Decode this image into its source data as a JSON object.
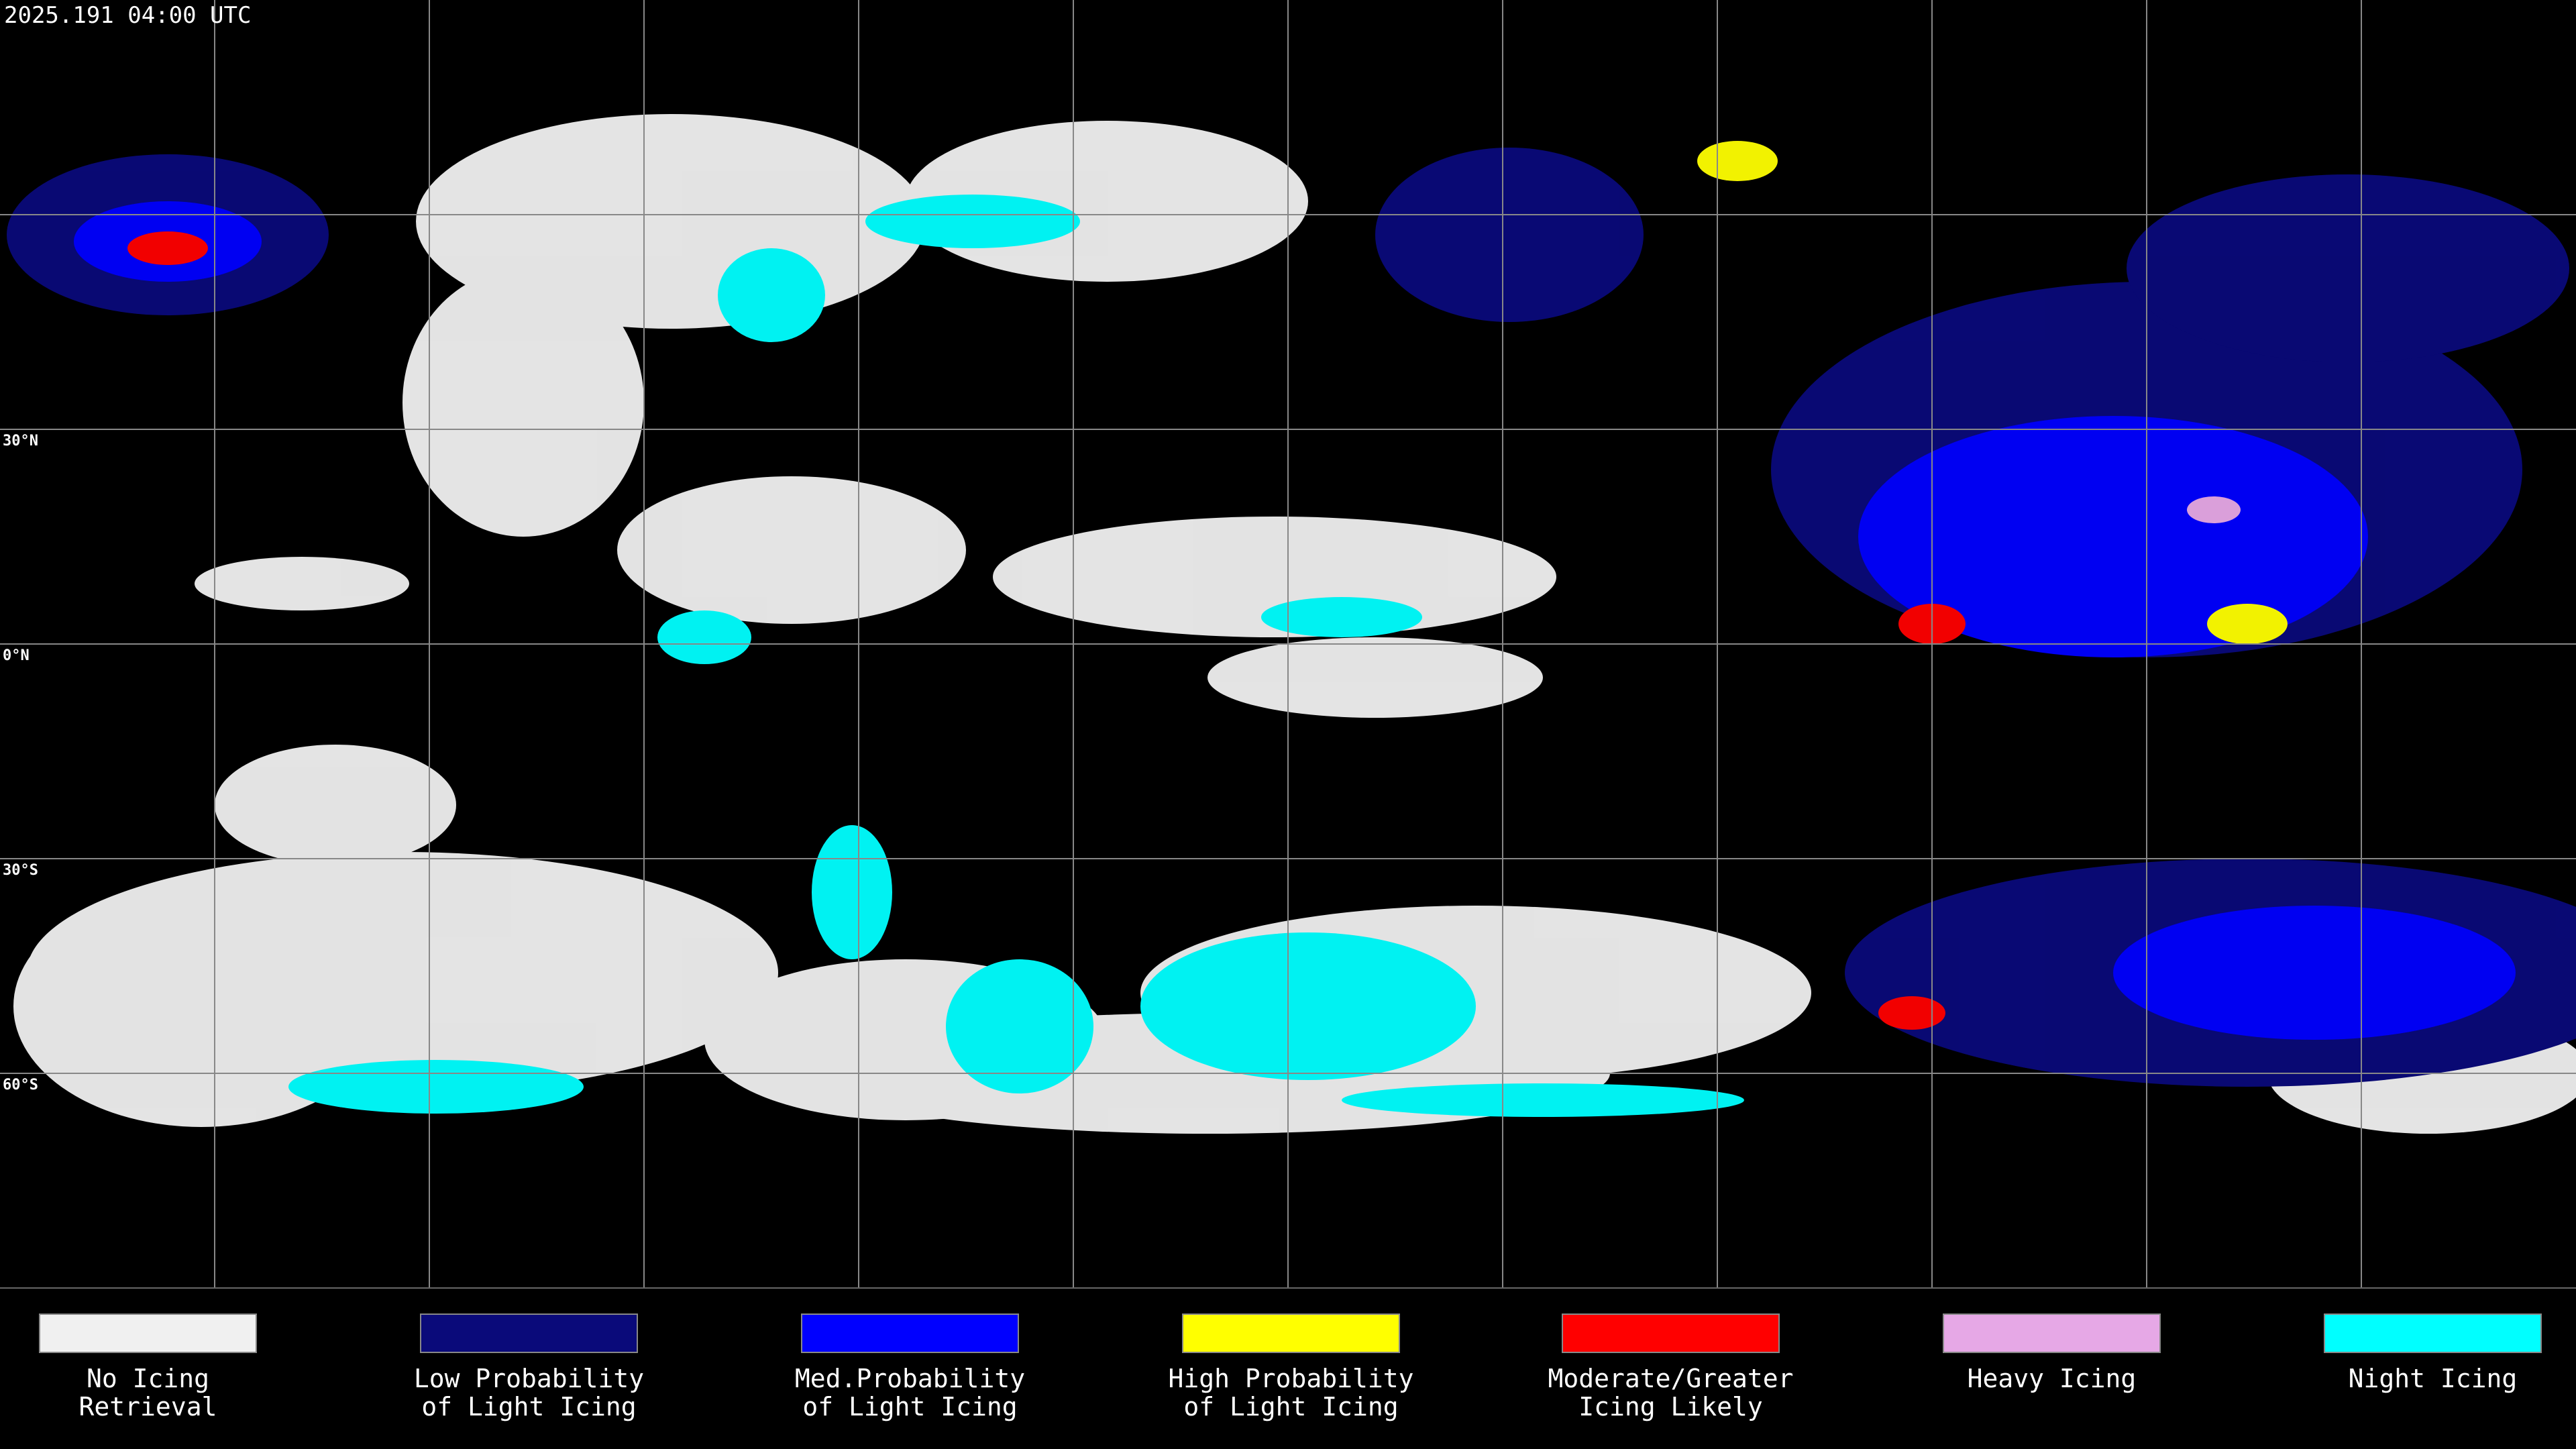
{
  "timestamp": "2025.191 04:00 UTC",
  "latitude_labels": [
    "30°N",
    "0°N",
    "30°S",
    "60°S"
  ],
  "legend": [
    {
      "lines": [
        "No Icing",
        "Retrieval"
      ],
      "color": "#f0f0f0"
    },
    {
      "lines": [
        "Low Probability",
        "of Light Icing"
      ],
      "color": "#0a0a7a"
    },
    {
      "lines": [
        "Med.Probability",
        "of Light Icing"
      ],
      "color": "#0000ff"
    },
    {
      "lines": [
        "High Probability",
        "of Light Icing"
      ],
      "color": "#ffff00"
    },
    {
      "lines": [
        "Moderate/Greater",
        "Icing Likely"
      ],
      "color": "#ff0000"
    },
    {
      "lines": [
        "Heavy Icing"
      ],
      "color": "#e6a8e6"
    },
    {
      "lines": [
        "Night Icing"
      ],
      "color": "#00ffff"
    }
  ]
}
